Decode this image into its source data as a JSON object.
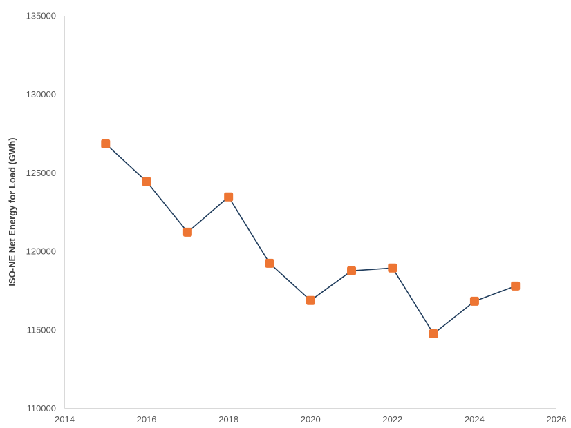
{
  "chart_data": {
    "type": "line",
    "title": "",
    "xlabel": "",
    "ylabel": "ISO-NE Net Energy for Load (GWh)",
    "xlim": [
      2014,
      2026
    ],
    "ylim": [
      110000,
      135000
    ],
    "x_ticks": [
      2014,
      2016,
      2018,
      2020,
      2022,
      2024,
      2026
    ],
    "y_ticks": [
      110000,
      115000,
      120000,
      125000,
      130000,
      135000
    ],
    "grid": false,
    "legend": null,
    "series": [
      {
        "name": "ISO-NE Net Energy for Load",
        "line_color": "#1f3c5c",
        "marker_color": "#ed7533",
        "marker": "rounded-square",
        "x": [
          2015,
          2016,
          2017,
          2018,
          2019,
          2020,
          2021,
          2022,
          2023,
          2024,
          2025
        ],
        "values": [
          126850,
          124440,
          121220,
          123470,
          119240,
          116870,
          118760,
          118940,
          114750,
          116820,
          117790
        ]
      }
    ]
  },
  "colors": {
    "axis_line": "#d9d9d9",
    "tick_text": "#595959",
    "axis_title": "#404040",
    "background": "#ffffff"
  }
}
